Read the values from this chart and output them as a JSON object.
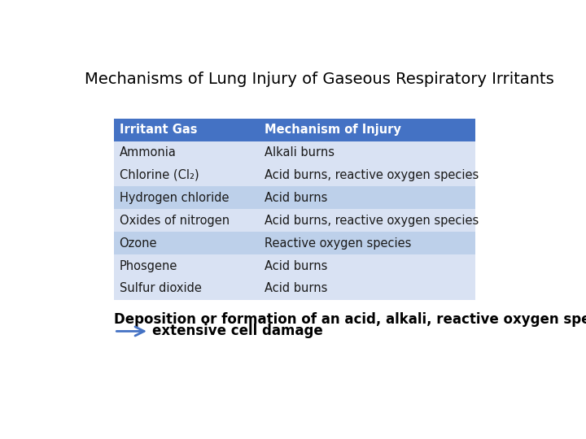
{
  "title": "Mechanisms of Lung Injury of Gaseous Respiratory Irritants",
  "header": [
    "Irritant Gas",
    "Mechanism of Injury"
  ],
  "rows": [
    [
      "Ammonia",
      "Alkali burns"
    ],
    [
      "Chlorine (Cl₂)",
      "Acid burns, reactive oxygen species"
    ],
    [
      "Hydrogen chloride",
      "Acid burns"
    ],
    [
      "Oxides of nitrogen",
      "Acid burns, reactive oxygen species"
    ],
    [
      "Ozone",
      "Reactive oxygen species"
    ],
    [
      "Phosgene",
      "Acid burns"
    ],
    [
      "Sulfur dioxide",
      "Acid burns"
    ]
  ],
  "row_colors": [
    "#D9E2F3",
    "#D9E2F3",
    "#BDD0EA",
    "#D9E2F3",
    "#BDD0EA",
    "#D9E2F3",
    "#D9E2F3"
  ],
  "header_bg": "#4472C4",
  "header_text_color": "#FFFFFF",
  "row_text_color": "#1A1A1A",
  "footer_line1": "Deposition or formation of an acid, alkali, reactive oxygen species",
  "footer_line2": "extensive cell damage",
  "arrow_color": "#4472C4",
  "background_color": "#FFFFFF",
  "title_fontsize": 14,
  "header_fontsize": 10.5,
  "row_fontsize": 10.5,
  "footer_fontsize": 12
}
